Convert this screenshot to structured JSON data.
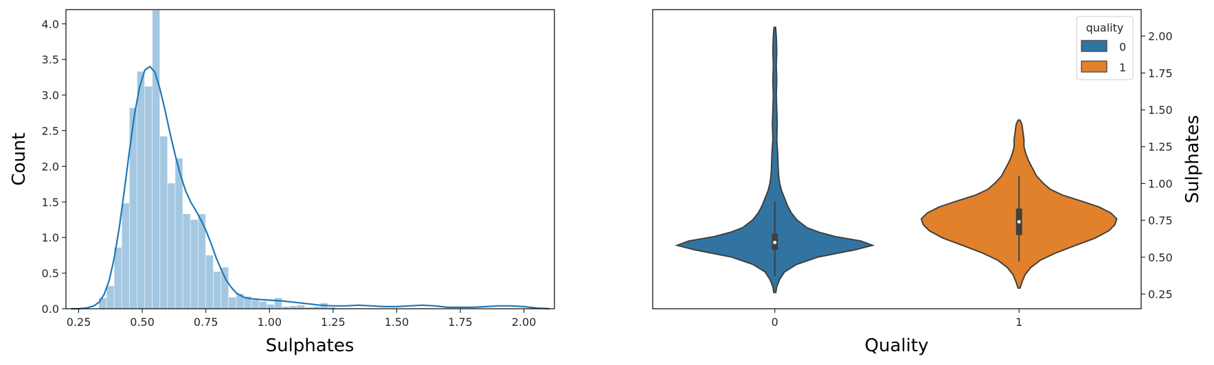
{
  "chart_data": [
    {
      "type": "histogram",
      "xlabel": "Sulphates",
      "ylabel": "Count",
      "xlim": [
        0.2,
        2.12
      ],
      "ylim": [
        0,
        4.2
      ],
      "xticks": [
        "0.25",
        "0.50",
        "0.75",
        "1.00",
        "1.25",
        "1.50",
        "1.75",
        "2.00"
      ],
      "yticks": [
        "0.0",
        "0.5",
        "1.0",
        "1.5",
        "2.0",
        "2.5",
        "3.0",
        "3.5",
        "4.0"
      ],
      "bar_color": "#a4c8e1",
      "line_color": "#1f77b4",
      "bins": [
        {
          "x0": 0.33,
          "x1": 0.36,
          "value": 0.15
        },
        {
          "x0": 0.36,
          "x1": 0.39,
          "value": 0.32
        },
        {
          "x0": 0.39,
          "x1": 0.42,
          "value": 0.86
        },
        {
          "x0": 0.42,
          "x1": 0.45,
          "value": 1.48
        },
        {
          "x0": 0.45,
          "x1": 0.48,
          "value": 2.82
        },
        {
          "x0": 0.48,
          "x1": 0.51,
          "value": 3.33
        },
        {
          "x0": 0.51,
          "x1": 0.54,
          "value": 3.12
        },
        {
          "x0": 0.54,
          "x1": 0.57,
          "value": 4.19
        },
        {
          "x0": 0.57,
          "x1": 0.6,
          "value": 2.42
        },
        {
          "x0": 0.6,
          "x1": 0.63,
          "value": 1.76
        },
        {
          "x0": 0.63,
          "x1": 0.66,
          "value": 2.11
        },
        {
          "x0": 0.66,
          "x1": 0.69,
          "value": 1.33
        },
        {
          "x0": 0.69,
          "x1": 0.72,
          "value": 1.25
        },
        {
          "x0": 0.72,
          "x1": 0.75,
          "value": 1.33
        },
        {
          "x0": 0.75,
          "x1": 0.78,
          "value": 0.75
        },
        {
          "x0": 0.78,
          "x1": 0.81,
          "value": 0.52
        },
        {
          "x0": 0.81,
          "x1": 0.84,
          "value": 0.58
        },
        {
          "x0": 0.84,
          "x1": 0.87,
          "value": 0.16
        },
        {
          "x0": 0.87,
          "x1": 0.9,
          "value": 0.21
        },
        {
          "x0": 0.9,
          "x1": 0.93,
          "value": 0.17
        },
        {
          "x0": 0.93,
          "x1": 0.96,
          "value": 0.12
        },
        {
          "x0": 0.96,
          "x1": 0.99,
          "value": 0.1
        },
        {
          "x0": 0.99,
          "x1": 1.02,
          "value": 0.06
        },
        {
          "x0": 1.02,
          "x1": 1.05,
          "value": 0.15
        },
        {
          "x0": 1.05,
          "x1": 1.08,
          "value": 0.03
        },
        {
          "x0": 1.08,
          "x1": 1.11,
          "value": 0.04
        },
        {
          "x0": 1.11,
          "x1": 1.14,
          "value": 0.05
        },
        {
          "x0": 1.14,
          "x1": 1.17,
          "value": 0.02
        },
        {
          "x0": 1.17,
          "x1": 1.2,
          "value": 0.03
        },
        {
          "x0": 1.2,
          "x1": 1.23,
          "value": 0.08
        },
        {
          "x0": 1.23,
          "x1": 1.26,
          "value": 0.02
        }
      ],
      "kde": {
        "x": [
          0.22,
          0.25,
          0.28,
          0.31,
          0.33,
          0.35,
          0.37,
          0.39,
          0.41,
          0.43,
          0.45,
          0.47,
          0.49,
          0.51,
          0.53,
          0.55,
          0.57,
          0.59,
          0.61,
          0.63,
          0.65,
          0.67,
          0.69,
          0.71,
          0.73,
          0.75,
          0.77,
          0.79,
          0.81,
          0.83,
          0.85,
          0.87,
          0.9,
          0.93,
          0.96,
          1.0,
          1.05,
          1.1,
          1.15,
          1.2,
          1.25,
          1.3,
          1.35,
          1.4,
          1.45,
          1.5,
          1.55,
          1.6,
          1.65,
          1.7,
          1.75,
          1.8,
          1.85,
          1.9,
          1.95,
          2.0,
          2.05,
          2.1
        ],
        "y": [
          0.0,
          0.0,
          0.01,
          0.04,
          0.09,
          0.2,
          0.4,
          0.72,
          1.15,
          1.68,
          2.23,
          2.74,
          3.12,
          3.35,
          3.4,
          3.32,
          3.08,
          2.78,
          2.45,
          2.15,
          1.88,
          1.66,
          1.5,
          1.38,
          1.25,
          1.1,
          0.92,
          0.72,
          0.55,
          0.4,
          0.3,
          0.22,
          0.16,
          0.14,
          0.13,
          0.12,
          0.11,
          0.09,
          0.07,
          0.05,
          0.04,
          0.04,
          0.05,
          0.04,
          0.03,
          0.03,
          0.04,
          0.05,
          0.04,
          0.02,
          0.02,
          0.02,
          0.03,
          0.04,
          0.04,
          0.03,
          0.01,
          0.0
        ]
      }
    },
    {
      "type": "violin",
      "xlabel": "Quality",
      "ylabel": "Sulphates",
      "ylim": [
        0.15,
        2.18
      ],
      "categories": [
        "0",
        "1"
      ],
      "yticks": [
        "0.25",
        "0.50",
        "0.75",
        "1.00",
        "1.25",
        "1.50",
        "1.75",
        "2.00"
      ],
      "legend": {
        "title": "quality",
        "position": "top-right",
        "entries": [
          "0",
          "1"
        ]
      },
      "series": [
        {
          "name": "0",
          "color": "#3274a1",
          "box": {
            "q1": 0.55,
            "median": 0.6,
            "q3": 0.66,
            "whisker_low": 0.37,
            "whisker_high": 0.88
          },
          "profile": {
            "y": [
              0.26,
              0.3,
              0.35,
              0.4,
              0.45,
              0.5,
              0.55,
              0.58,
              0.61,
              0.64,
              0.67,
              0.7,
              0.75,
              0.8,
              0.85,
              0.9,
              0.95,
              1.0,
              1.05,
              1.1,
              1.2,
              1.3,
              1.4,
              1.5,
              1.6,
              1.7,
              1.8,
              1.9,
              2.0,
              2.06
            ],
            "w": [
              0.01,
              0.02,
              0.05,
              0.1,
              0.22,
              0.44,
              0.82,
              1.0,
              0.88,
              0.62,
              0.45,
              0.33,
              0.23,
              0.17,
              0.13,
              0.1,
              0.07,
              0.05,
              0.04,
              0.035,
              0.03,
              0.02,
              0.025,
              0.02,
              0.015,
              0.02,
              0.015,
              0.02,
              0.015,
              0.008
            ]
          }
        },
        {
          "name": "1",
          "color": "#e1812c",
          "box": {
            "q1": 0.65,
            "median": 0.74,
            "q3": 0.83,
            "whisker_low": 0.47,
            "whisker_high": 1.05
          },
          "profile": {
            "y": [
              0.29,
              0.33,
              0.38,
              0.43,
              0.48,
              0.53,
              0.58,
              0.63,
              0.68,
              0.72,
              0.76,
              0.8,
              0.84,
              0.88,
              0.92,
              0.96,
              1.0,
              1.05,
              1.1,
              1.15,
              1.2,
              1.25,
              1.3,
              1.35,
              1.4,
              1.43
            ],
            "w": [
              0.01,
              0.03,
              0.06,
              0.12,
              0.22,
              0.38,
              0.58,
              0.78,
              0.92,
              0.98,
              1.0,
              0.94,
              0.82,
              0.64,
              0.45,
              0.32,
              0.25,
              0.18,
              0.14,
              0.1,
              0.07,
              0.05,
              0.05,
              0.04,
              0.03,
              0.01
            ]
          }
        }
      ]
    }
  ]
}
